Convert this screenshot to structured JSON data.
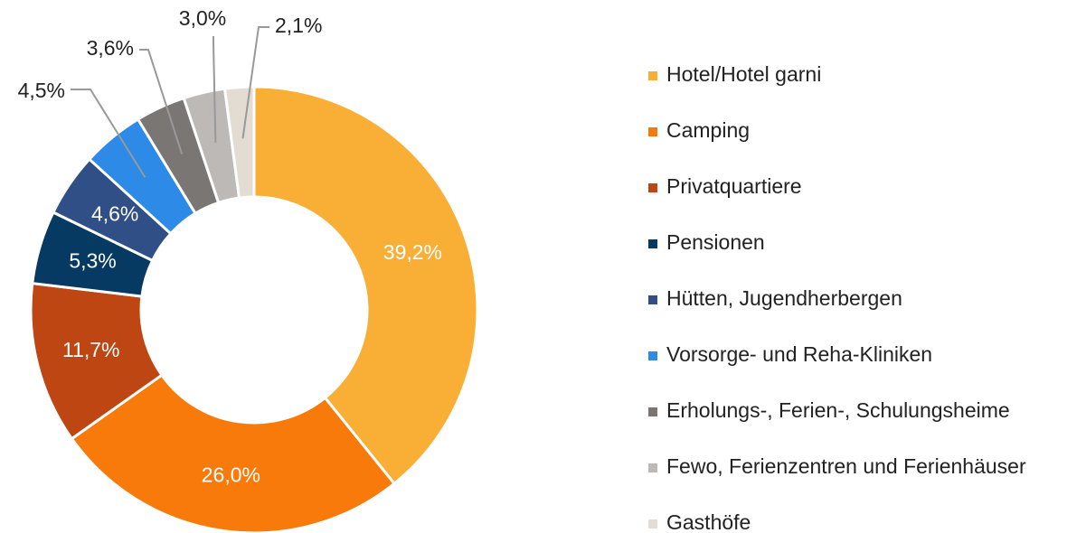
{
  "chart_data": {
    "type": "donut",
    "categories": [
      "Hotel/Hotel garni",
      "Camping",
      "Privatquartiere",
      "Pensionen",
      "Hütten, Jugendherbergen",
      "Vorsorge- und Reha-Kliniken",
      "Erholungs-, Ferien-, Schulungsheime",
      "Fewo, Ferienzentren und Ferienhäuser",
      "Gasthöfe"
    ],
    "values": [
      39.2,
      26.0,
      11.7,
      5.3,
      4.6,
      4.5,
      3.6,
      3.0,
      2.1
    ],
    "value_labels": [
      "39,2%",
      "26,0%",
      "11,7%",
      "5,3%",
      "4,6%",
      "4,5%",
      "3,6%",
      "3,0%",
      "2,1%"
    ],
    "colors": [
      "#f9ae36",
      "#f77a0a",
      "#bd4612",
      "#063a62",
      "#2f4f86",
      "#2d8ae6",
      "#7a7674",
      "#bdb9b6",
      "#e2dcd3"
    ],
    "legend": "right"
  }
}
